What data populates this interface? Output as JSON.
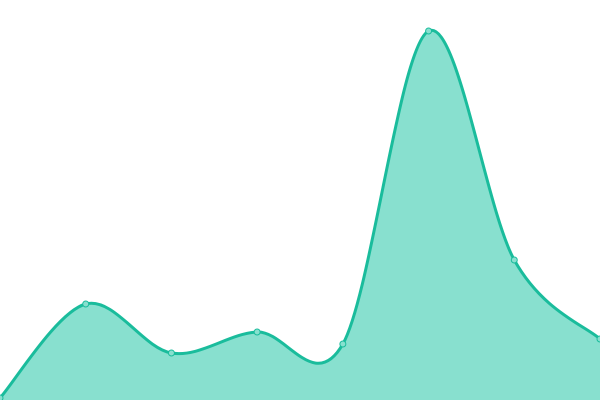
{
  "chart_data": {
    "type": "area",
    "title": "",
    "xlabel": "",
    "ylabel": "",
    "x": [
      0,
      1,
      2,
      3,
      4,
      5,
      6,
      7
    ],
    "series": [
      {
        "values": [
          2,
          96,
          47,
          68,
          56,
          369,
          140,
          61
        ]
      }
    ],
    "xlim": [
      0,
      7
    ],
    "ylim": [
      0,
      400
    ],
    "grid": false,
    "axes_visible": false,
    "curve": "smooth",
    "colors": {
      "line": "#1abc9c",
      "fill": "#88e0cf",
      "point_fill": "#88e0cf",
      "point_stroke": "#1abc9c"
    }
  }
}
